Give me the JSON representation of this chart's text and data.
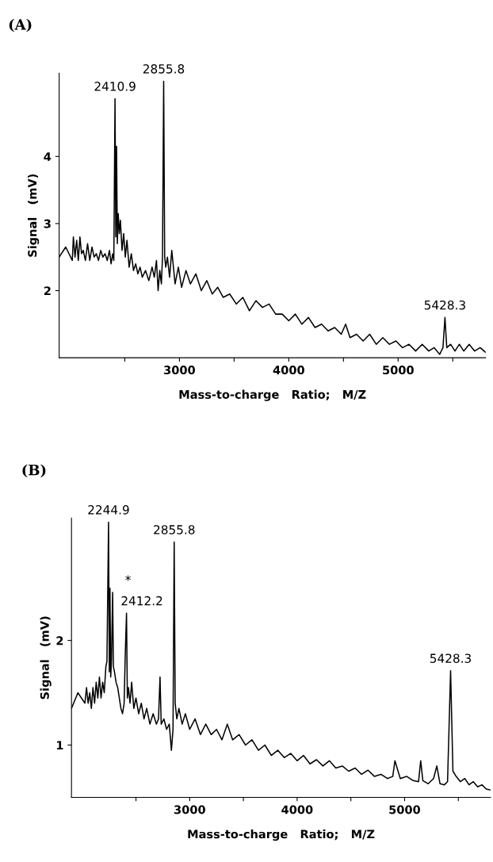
{
  "chart_data": [
    {
      "type": "line",
      "title": "(A)",
      "xlabel": "Mass-to-charge   Ratio;   M/Z",
      "ylabel": "Signal   (mV)",
      "series": [
        {
          "color": "#000000",
          "x": [
            1900,
            1960,
            2020,
            2030,
            2045,
            2060,
            2075,
            2090,
            2105,
            2120,
            2140,
            2160,
            2180,
            2200,
            2220,
            2240,
            2260,
            2280,
            2300,
            2320,
            2340,
            2360,
            2375,
            2390,
            2400,
            2410.9,
            2418,
            2425,
            2432,
            2440,
            2450,
            2460,
            2475,
            2490,
            2505,
            2520,
            2540,
            2560,
            2580,
            2600,
            2620,
            2640,
            2660,
            2690,
            2720,
            2750,
            2770,
            2790,
            2805,
            2820,
            2835,
            2845,
            2855.8,
            2865,
            2875,
            2890,
            2910,
            2930,
            2960,
            2990,
            3020,
            3060,
            3100,
            3150,
            3200,
            3250,
            3300,
            3350,
            3400,
            3460,
            3520,
            3580,
            3640,
            3700,
            3760,
            3820,
            3880,
            3940,
            4000,
            4060,
            4120,
            4180,
            4240,
            4300,
            4360,
            4420,
            4480,
            4520,
            4560,
            4620,
            4680,
            4740,
            4800,
            4860,
            4920,
            4980,
            5040,
            5100,
            5160,
            5220,
            5280,
            5330,
            5380,
            5410,
            5428.3,
            5445,
            5480,
            5520,
            5560,
            5600,
            5650,
            5700,
            5750,
            5800
          ],
          "values": [
            2.5,
            2.65,
            2.45,
            2.8,
            2.5,
            2.75,
            2.45,
            2.8,
            2.55,
            2.6,
            2.45,
            2.7,
            2.45,
            2.65,
            2.5,
            2.55,
            2.45,
            2.6,
            2.5,
            2.55,
            2.45,
            2.6,
            2.4,
            2.55,
            2.45,
            4.86,
            2.8,
            4.15,
            2.7,
            3.15,
            2.85,
            3.05,
            2.6,
            2.85,
            2.5,
            2.75,
            2.35,
            2.55,
            2.3,
            2.4,
            2.25,
            2.35,
            2.2,
            2.3,
            2.15,
            2.35,
            2.2,
            2.45,
            2.0,
            2.3,
            2.1,
            2.5,
            5.12,
            2.5,
            2.35,
            2.5,
            2.2,
            2.6,
            2.1,
            2.35,
            2.05,
            2.3,
            2.1,
            2.25,
            2.0,
            2.15,
            1.95,
            2.05,
            1.9,
            1.95,
            1.8,
            1.9,
            1.7,
            1.85,
            1.75,
            1.8,
            1.65,
            1.65,
            1.55,
            1.65,
            1.5,
            1.6,
            1.45,
            1.5,
            1.4,
            1.45,
            1.35,
            1.5,
            1.3,
            1.35,
            1.25,
            1.35,
            1.2,
            1.3,
            1.2,
            1.25,
            1.15,
            1.2,
            1.1,
            1.2,
            1.1,
            1.15,
            1.05,
            1.15,
            1.6,
            1.15,
            1.2,
            1.1,
            1.2,
            1.1,
            1.2,
            1.1,
            1.15,
            1.08
          ]
        }
      ],
      "annotations": [
        {
          "text": "2410.9",
          "x": 2410.9,
          "y": 4.86
        },
        {
          "text": "2855.8",
          "x": 2855.8,
          "y": 5.12
        },
        {
          "text": "5428.3",
          "x": 5428.3,
          "y": 1.6
        }
      ],
      "xlim": [
        1900,
        5800
      ],
      "ylim": [
        1.0,
        5.24
      ],
      "xticks": [
        {
          "value": 2500,
          "label": null
        },
        3000,
        {
          "value": 3500,
          "label": null
        },
        4000,
        {
          "value": 4500,
          "label": null
        },
        5000,
        {
          "value": 5500,
          "label": null
        }
      ],
      "yticks": [
        2,
        3,
        4
      ],
      "grid": false,
      "legend": false,
      "marker": "none",
      "line_style": "solid"
    },
    {
      "type": "line",
      "title": "(B)",
      "xlabel": "Mass-to-charge   Ratio;   M/Z",
      "ylabel": "Signal   (mV)",
      "series": [
        {
          "color": "#000000",
          "x": [
            1900,
            1960,
            2025,
            2040,
            2055,
            2070,
            2085,
            2100,
            2115,
            2130,
            2145,
            2160,
            2175,
            2190,
            2205,
            2220,
            2230,
            2244.9,
            2252,
            2258,
            2265,
            2272,
            2283,
            2290,
            2300,
            2315,
            2330,
            2345,
            2360,
            2375,
            2390,
            2400,
            2412.2,
            2420,
            2430,
            2445,
            2460,
            2480,
            2500,
            2525,
            2550,
            2575,
            2600,
            2630,
            2660,
            2690,
            2710,
            2724,
            2735,
            2760,
            2785,
            2810,
            2830,
            2845,
            2855.8,
            2865,
            2880,
            2900,
            2930,
            2960,
            3000,
            3050,
            3100,
            3150,
            3200,
            3250,
            3300,
            3350,
            3400,
            3460,
            3520,
            3580,
            3640,
            3700,
            3760,
            3820,
            3880,
            3940,
            4000,
            4060,
            4120,
            4180,
            4240,
            4300,
            4360,
            4420,
            4480,
            4540,
            4600,
            4660,
            4720,
            4780,
            4840,
            4890,
            4910,
            4960,
            5020,
            5080,
            5130,
            5150,
            5170,
            5220,
            5270,
            5300,
            5330,
            5370,
            5400,
            5428.3,
            5450,
            5480,
            5520,
            5560,
            5600,
            5640,
            5680,
            5720,
            5760,
            5800
          ],
          "values": [
            1.35,
            1.5,
            1.4,
            1.55,
            1.4,
            1.5,
            1.35,
            1.55,
            1.4,
            1.6,
            1.45,
            1.65,
            1.45,
            1.6,
            1.5,
            1.75,
            1.8,
            3.13,
            1.7,
            2.5,
            1.65,
            1.8,
            2.46,
            1.75,
            1.7,
            1.6,
            1.55,
            1.45,
            1.35,
            1.3,
            1.4,
            1.85,
            2.26,
            1.45,
            1.55,
            1.4,
            1.6,
            1.35,
            1.45,
            1.3,
            1.4,
            1.25,
            1.35,
            1.2,
            1.3,
            1.2,
            1.25,
            1.65,
            1.2,
            1.25,
            1.15,
            1.2,
            0.95,
            1.15,
            2.94,
            1.4,
            1.25,
            1.35,
            1.2,
            1.3,
            1.15,
            1.25,
            1.1,
            1.2,
            1.1,
            1.15,
            1.05,
            1.2,
            1.05,
            1.1,
            1.0,
            1.05,
            0.95,
            1.0,
            0.9,
            0.95,
            0.88,
            0.92,
            0.85,
            0.9,
            0.82,
            0.86,
            0.8,
            0.85,
            0.78,
            0.8,
            0.75,
            0.78,
            0.72,
            0.76,
            0.7,
            0.72,
            0.68,
            0.7,
            0.85,
            0.68,
            0.7,
            0.66,
            0.65,
            0.85,
            0.66,
            0.63,
            0.68,
            0.8,
            0.63,
            0.62,
            0.65,
            1.71,
            0.75,
            0.7,
            0.65,
            0.68,
            0.62,
            0.65,
            0.6,
            0.62,
            0.58,
            0.57
          ]
        }
      ],
      "annotations": [
        {
          "text": "2244.9",
          "x": 2244.9,
          "y": 3.13
        },
        {
          "text": "*",
          "x": 2283,
          "y": 2.46
        },
        {
          "text": "2412.2",
          "x": 2412.2,
          "y": 2.26
        },
        {
          "text": "2855.8",
          "x": 2855.8,
          "y": 2.94
        },
        {
          "text": "5428.3",
          "x": 5428.3,
          "y": 1.71
        }
      ],
      "xlim": [
        1900,
        5800
      ],
      "ylim": [
        0.5,
        3.17
      ],
      "xticks": [
        {
          "value": 2500,
          "label": null
        },
        3000,
        {
          "value": 3500,
          "label": null
        },
        4000,
        {
          "value": 4500,
          "label": null
        },
        5000,
        {
          "value": 5500,
          "label": null
        }
      ],
      "yticks": [
        1,
        2
      ],
      "grid": false,
      "legend": false,
      "marker": "none",
      "line_style": "solid"
    }
  ]
}
